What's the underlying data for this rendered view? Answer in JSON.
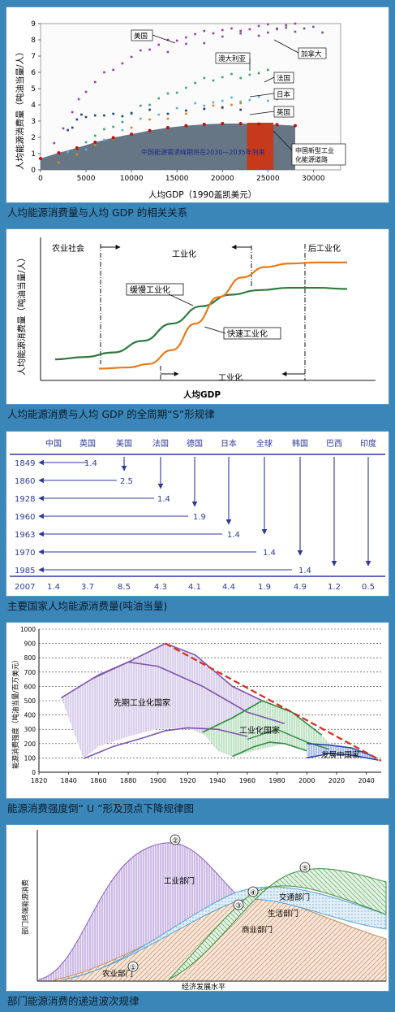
{
  "captions": {
    "c1": "人均能源消费量与人均 GDP 的相关关系",
    "c2": "人均能源消费与人均 GDP 的全周期“S”形规律",
    "c3": "主要国家人均能源消费量(吨油当量)",
    "c4": "能源消费强度倒“ U ”形及顶点下降规律图",
    "c5": "部门能源消费的递进波次规律"
  },
  "chart_data": [
    {
      "type": "scatter",
      "ylabel": "人均能源消费量（吨油当量/人）",
      "xlabel": "人均GDP（1990盖凯美元）",
      "xlim": [
        0,
        33000
      ],
      "ylim": [
        0,
        9
      ],
      "x_ticks": [
        "0",
        "5000",
        "10000",
        "15000",
        "20000",
        "25000",
        "30000"
      ],
      "y_ticks": [
        "0",
        "1",
        "2",
        "3",
        "4",
        "5",
        "6",
        "7",
        "8",
        "9"
      ],
      "series": [
        {
          "name": "美国",
          "color": "#a03aa8",
          "x": [
            1500,
            2500,
            3500,
            4200,
            5000,
            6000,
            7000,
            8000,
            9000,
            10000,
            11000,
            12000,
            13000,
            14000,
            15000,
            16000,
            17000,
            18000,
            19000,
            20000,
            21000,
            22000,
            23000,
            24000,
            25000,
            26000,
            27000,
            28000
          ],
          "y": [
            1.8,
            2.6,
            3.5,
            4.2,
            4.9,
            5.4,
            5.9,
            6.3,
            6.6,
            6.9,
            7.2,
            7.5,
            7.7,
            7.9,
            8.1,
            8.2,
            8.3,
            8.4,
            8.5,
            8.6,
            8.6,
            8.7,
            8.7,
            8.8,
            8.8,
            8.8,
            8.9,
            8.9
          ]
        },
        {
          "name": "加拿大",
          "color": "#7a4fa0",
          "x": [
            14000,
            16000,
            18000,
            20000,
            22000,
            24000,
            25000,
            26000,
            27000,
            28000,
            29000,
            30000,
            31000
          ],
          "y": [
            7.2,
            7.6,
            7.9,
            8.2,
            8.3,
            8.4,
            8.5,
            8.6,
            8.6,
            8.6,
            8.7,
            8.7,
            8.6
          ]
        },
        {
          "name": "澳大利亚",
          "color": "#3aa36a",
          "x": [
            5000,
            6000,
            7000,
            8000,
            9000,
            10000,
            11000,
            12000,
            13000,
            14000,
            15000,
            16000,
            17000,
            18000,
            19000,
            20000,
            21000,
            22000,
            23000,
            24000,
            25000
          ],
          "y": [
            1.8,
            2.1,
            2.4,
            2.8,
            3.0,
            3.4,
            3.8,
            4.1,
            4.4,
            4.6,
            4.9,
            5.1,
            5.3,
            5.5,
            5.6,
            5.7,
            5.8,
            5.8,
            5.9,
            5.9,
            6.0
          ]
        },
        {
          "name": "法国",
          "color": "#5ab0d8",
          "x": [
            3000,
            5000,
            7000,
            9000,
            11000,
            13000,
            15000,
            17000,
            18000,
            19000,
            20000,
            21000,
            22000,
            23000,
            24000,
            25000,
            26000
          ],
          "y": [
            1.0,
            1.4,
            1.9,
            2.4,
            3.0,
            3.5,
            3.8,
            4.0,
            4.1,
            4.2,
            4.2,
            4.3,
            4.3,
            4.3,
            4.4,
            4.4,
            4.4
          ]
        },
        {
          "name": "日本",
          "color": "#e3831e",
          "x": [
            2000,
            4000,
            6000,
            8000,
            10000,
            12000,
            14000,
            16000,
            18000,
            19000,
            20000,
            21000,
            22000
          ],
          "y": [
            0.5,
            0.9,
            1.4,
            2.0,
            2.6,
            3.0,
            3.3,
            3.5,
            3.7,
            3.8,
            3.9,
            4.0,
            4.0
          ]
        },
        {
          "name": "英国",
          "color": "#1f3a8a",
          "x": [
            3000,
            3500,
            4000,
            4500,
            5000,
            6000,
            7000,
            8000,
            9000,
            10000,
            12000,
            14000,
            16000,
            18000,
            20000,
            22000
          ],
          "y": [
            2.3,
            2.7,
            3.1,
            3.3,
            3.4,
            3.4,
            3.3,
            3.3,
            3.4,
            3.5,
            3.6,
            3.6,
            3.7,
            3.7,
            3.7,
            3.8
          ]
        },
        {
          "name": "中国",
          "color": "#c01010",
          "x": [
            0,
            2000,
            4000,
            6000,
            8000,
            10000,
            12000,
            14000,
            16000,
            18000,
            20000,
            22000,
            24000,
            26000,
            28000
          ],
          "y": [
            0.7,
            1.05,
            1.35,
            1.7,
            1.98,
            2.2,
            2.42,
            2.6,
            2.72,
            2.8,
            2.85,
            2.85,
            2.82,
            2.78,
            2.72
          ]
        }
      ],
      "labels": {
        "usa": "美国",
        "canada": "加拿大",
        "australia": "澳大利亚",
        "france": "法国",
        "japan": "日本",
        "uk": "英国"
      },
      "annotation": "中国能源需求峰期将在2030—2035年到来",
      "annotation2a": "中国新型工业",
      "annotation2b": "化能源道路",
      "colors": {
        "fill": "#5a6a7a",
        "peak": "#c6391a",
        "curve": "#c01010"
      }
    },
    {
      "type": "line",
      "ylabel": "人均能源消费量（吨油当量/人）",
      "xlabel": "人均GDP",
      "stage_labels": {
        "agri": "农业社会",
        "indus": "工业化",
        "post": "后工业化",
        "indus2": "工业化"
      },
      "series": [
        {
          "name": "缓慢工业化",
          "color": "#2f7a3e",
          "x": [
            0,
            1,
            2,
            3,
            4,
            5,
            6,
            7,
            8,
            9,
            10
          ],
          "y": [
            0.14,
            0.16,
            0.2,
            0.3,
            0.45,
            0.6,
            0.7,
            0.74,
            0.76,
            0.76,
            0.75
          ]
        },
        {
          "name": "快速工业化",
          "color": "#e97b18",
          "x": [
            1.5,
            2.5,
            3.2,
            4,
            4.8,
            5.6,
            6.4,
            7.2,
            8,
            9,
            10
          ],
          "y": [
            0.06,
            0.07,
            0.1,
            0.22,
            0.45,
            0.68,
            0.85,
            0.94,
            0.97,
            0.98,
            0.98
          ]
        }
      ]
    },
    {
      "type": "table",
      "columns": [
        "中国",
        "英国",
        "美国",
        "法国",
        "德国",
        "日本",
        "全球",
        "韩国",
        "巴西",
        "印度"
      ],
      "years": [
        "1849",
        "1860",
        "1928",
        "1960",
        "1963",
        "1970",
        "1985",
        "2007"
      ],
      "year_values": [
        "1.4",
        "2.5",
        "1.4",
        "1.9",
        "1.4",
        "1.4",
        "1.4"
      ],
      "values_2007": [
        "1.4",
        "3.7",
        "8.5",
        "4.3",
        "4.1",
        "4.4",
        "1.9",
        "4.9",
        "1.2",
        "0.5"
      ]
    },
    {
      "type": "area",
      "ylabel": "能源消费强度（吨油当量/百万美元）",
      "xlim": [
        1820,
        2050
      ],
      "ylim": [
        0,
        1000
      ],
      "x_ticks": [
        "1820",
        "1840",
        "1860",
        "1880",
        "1900",
        "1920",
        "1940",
        "1960",
        "1980",
        "2000",
        "2020",
        "2040"
      ],
      "y_ticks": [
        "0",
        "100",
        "200",
        "300",
        "400",
        "500",
        "600",
        "700",
        "800",
        "900",
        "1000"
      ],
      "region_labels": {
        "early": "先期工业化国家",
        "industrializing": "工业化国家",
        "developing": "发展中国家"
      },
      "envelope": {
        "x": [
          1905,
          2050
        ],
        "y": [
          900,
          80
        ]
      }
    },
    {
      "type": "area",
      "ylabel": "部门终端能源消费",
      "xlabel": "经济发展水平",
      "sectors": [
        {
          "name": "农业部门",
          "marker": "①"
        },
        {
          "name": "工业部门",
          "marker": "②"
        },
        {
          "name": "商业部门",
          "marker": "③"
        },
        {
          "name": "生活部门",
          "marker": "④"
        },
        {
          "name": "交通部门",
          "marker": "⑤"
        }
      ]
    }
  ]
}
